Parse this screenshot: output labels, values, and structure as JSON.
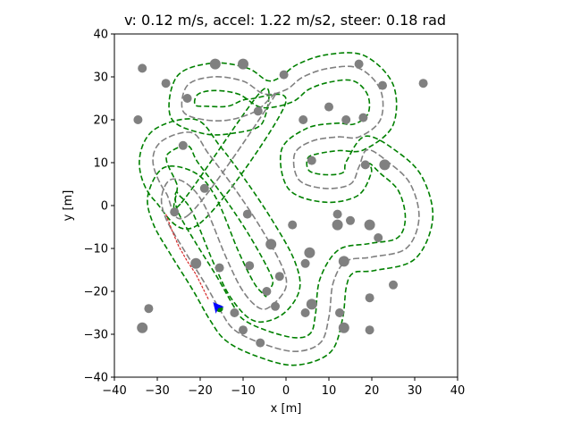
{
  "chart_data": {
    "type": "scatter",
    "title": "v: 0.12 m/s, accel: 1.22 m/s2, steer: 0.18 rad",
    "xlabel": "x [m]",
    "ylabel": "y [m]",
    "xlim": [
      -40,
      40
    ],
    "ylim": [
      -40,
      40
    ],
    "xticks": [
      -40,
      -30,
      -20,
      -10,
      0,
      10,
      20,
      30,
      40
    ],
    "yticks": [
      -40,
      -30,
      -20,
      -10,
      0,
      10,
      20,
      30,
      40
    ],
    "xtick_labels": [
      "−40",
      "−30",
      "−20",
      "−10",
      "0",
      "10",
      "20",
      "30",
      "40"
    ],
    "ytick_labels": [
      "−40",
      "−30",
      "−20",
      "−10",
      "0",
      "10",
      "20",
      "30",
      "40"
    ],
    "grid": false,
    "colors": {
      "obstacle": "#808080",
      "boundary": "#008000",
      "centerline": "#808080",
      "trajectory": "#d62728",
      "vehicle": "#0000ff",
      "vehicle_center": "#008000"
    },
    "obstacles": [
      [
        -33.5,
        32
      ],
      [
        -28,
        28.5
      ],
      [
        -16.5,
        33
      ],
      [
        -10,
        33
      ],
      [
        -0.5,
        30.5
      ],
      [
        17,
        33
      ],
      [
        22.5,
        28
      ],
      [
        32,
        28.5
      ],
      [
        -34.5,
        20
      ],
      [
        -23,
        25
      ],
      [
        -6.5,
        22
      ],
      [
        4,
        20
      ],
      [
        10,
        23
      ],
      [
        14,
        20
      ],
      [
        18,
        20.5
      ],
      [
        -24,
        14
      ],
      [
        6,
        10.5
      ],
      [
        18.5,
        9.5
      ],
      [
        23,
        9.5
      ],
      [
        -19,
        4
      ],
      [
        -26,
        -1.5
      ],
      [
        -9,
        -2
      ],
      [
        1.5,
        -4.5
      ],
      [
        12,
        -2
      ],
      [
        15,
        -3.5
      ],
      [
        19.5,
        -4.5
      ],
      [
        12,
        -4.5
      ],
      [
        21.5,
        -7.5
      ],
      [
        -3.5,
        -9
      ],
      [
        5.5,
        -11
      ],
      [
        -21,
        -13.5
      ],
      [
        -15.5,
        -14.5
      ],
      [
        -8.5,
        -14
      ],
      [
        13.5,
        -13
      ],
      [
        -1.5,
        -16.5
      ],
      [
        4.5,
        -13.5
      ],
      [
        -4.5,
        -20
      ],
      [
        25,
        -18.5
      ],
      [
        19.5,
        -21.5
      ],
      [
        -32,
        -24
      ],
      [
        -12,
        -25
      ],
      [
        -2.5,
        -23.5
      ],
      [
        6,
        -23
      ],
      [
        4.5,
        -25
      ],
      [
        12.5,
        -25
      ],
      [
        -33.5,
        -28.5
      ],
      [
        -10,
        -29
      ],
      [
        13.5,
        -28.5
      ],
      [
        19.5,
        -29
      ],
      [
        -6,
        -32
      ]
    ],
    "obstacle_sizes": {
      "large": [
        [
          -16.5,
          33
        ],
        [
          -10,
          33
        ],
        [
          23,
          9.5
        ],
        [
          19.5,
          -4.5
        ],
        [
          12,
          -4.5
        ],
        [
          -3.5,
          -9
        ],
        [
          5.5,
          -11
        ],
        [
          -21,
          -13.5
        ],
        [
          13.5,
          -13
        ],
        [
          6,
          -23
        ],
        [
          13.5,
          -28.5
        ],
        [
          -33.5,
          -28.5
        ]
      ]
    },
    "centerline": [
      [
        -22.5,
        -2
      ],
      [
        -28,
        3
      ],
      [
        -31,
        10
      ],
      [
        -29,
        15
      ],
      [
        -22,
        17
      ],
      [
        -18,
        12
      ],
      [
        -12,
        4
      ],
      [
        -6,
        -5
      ],
      [
        -1,
        -14
      ],
      [
        0,
        -19
      ],
      [
        -3,
        -23
      ],
      [
        -6,
        -24
      ],
      [
        -10,
        -20
      ],
      [
        -14,
        -12
      ],
      [
        -19,
        0
      ],
      [
        -23,
        5
      ],
      [
        -27,
        6
      ],
      [
        -29,
        2
      ],
      [
        -28,
        -3
      ],
      [
        -24,
        -10
      ],
      [
        -19,
        -18
      ],
      [
        -15,
        -25
      ],
      [
        -12,
        -29
      ],
      [
        -6,
        -32
      ],
      [
        2,
        -34
      ],
      [
        8,
        -32
      ],
      [
        10,
        -26
      ],
      [
        11,
        -18
      ],
      [
        14,
        -13
      ],
      [
        20,
        -12
      ],
      [
        28,
        -10
      ],
      [
        31,
        -3
      ],
      [
        29,
        5
      ],
      [
        24,
        10
      ],
      [
        19,
        13
      ],
      [
        17,
        9
      ],
      [
        15,
        5
      ],
      [
        9,
        4
      ],
      [
        3,
        6
      ],
      [
        2,
        12
      ],
      [
        6,
        15
      ],
      [
        12,
        16
      ],
      [
        17,
        16
      ],
      [
        22,
        20
      ],
      [
        22,
        27
      ],
      [
        17,
        32
      ],
      [
        10,
        32
      ],
      [
        4,
        30
      ],
      [
        0,
        27
      ],
      [
        -5,
        26
      ],
      [
        -10,
        29
      ],
      [
        -17,
        30
      ],
      [
        -23,
        28
      ],
      [
        -24,
        22
      ],
      [
        -19,
        20
      ],
      [
        -13,
        20
      ],
      [
        -7,
        22
      ],
      [
        -3,
        25
      ]
    ],
    "boundary_inner_offset": -3.2,
    "boundary_outer_offset": 3.2,
    "trajectory": [
      [
        -28,
        -2
      ],
      [
        -26.5,
        -6
      ],
      [
        -25,
        -9.5
      ],
      [
        -23,
        -13
      ],
      [
        -21,
        -16
      ],
      [
        -19.5,
        -19
      ],
      [
        -18,
        -22
      ]
    ],
    "vehicle": {
      "x": -17,
      "y": -22.5,
      "heading_deg": 130
    },
    "vehicle_center": {
      "x": -15.5,
      "y": -24
    }
  }
}
